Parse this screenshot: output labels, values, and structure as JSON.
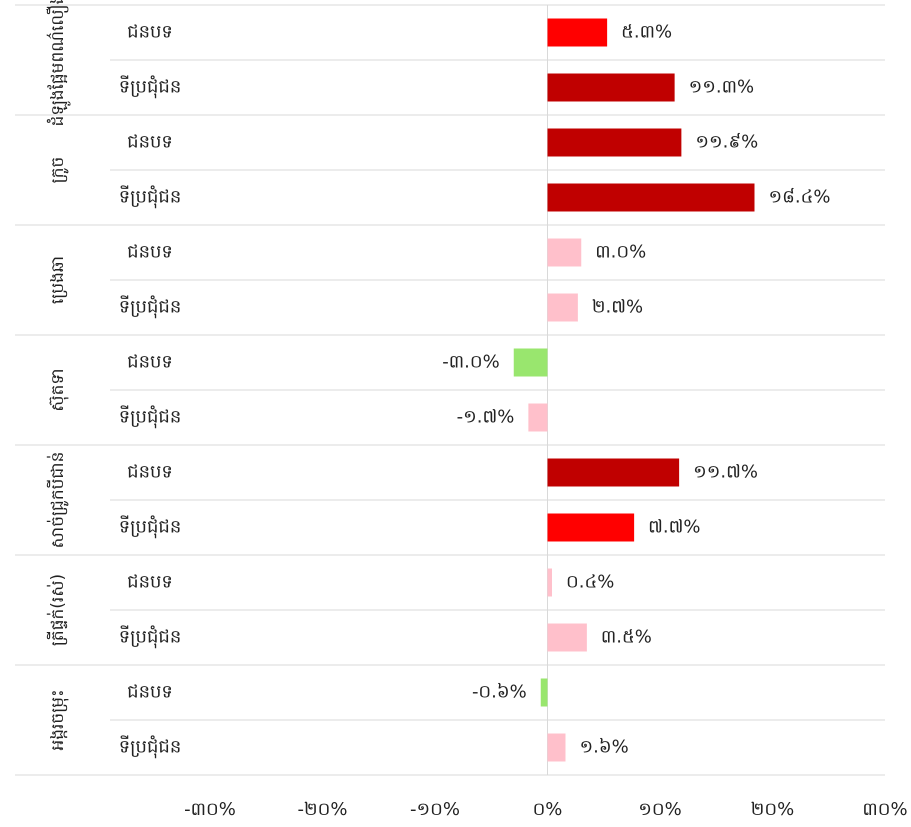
{
  "chart_data": {
    "type": "bar",
    "orientation": "horizontal",
    "groups": [
      "ដំឡូងផ្អែមពណ៌លឿង",
      "ក្រូច",
      "ប្រេងឆា",
      "ស៊ុតទា",
      "សាច់ជ្រូកបីជាន់",
      "ត្រីផ្ទក់(រស់)",
      "អង្ករចម្រុះ"
    ],
    "categories": [
      "ជនបទ",
      "ទីប្រជុំជន",
      "ជនបទ",
      "ទីប្រជុំជន",
      "ជនបទ",
      "ទីប្រជុំជន",
      "ជនបទ",
      "ទីប្រជុំជន",
      "ជនបទ",
      "ទីប្រជុំជន",
      "ជនបទ",
      "ទីប្រជុំជន",
      "ជនបទ",
      "ទីប្រជុំជន"
    ],
    "values": [
      5.3,
      11.3,
      11.9,
      18.4,
      3.0,
      2.7,
      -3.0,
      -1.7,
      11.7,
      7.7,
      0.4,
      3.5,
      -0.6,
      1.6
    ],
    "value_labels": [
      "៥.៣%",
      "១១.៣%",
      "១១.៩%",
      "១៨.៤%",
      "៣.០%",
      "២.៧%",
      "-៣.០%",
      "-១.៧%",
      "១១.៧%",
      "៧.៧%",
      "០.៤%",
      "៣.៥%",
      "-០.៦%",
      "១.៦%"
    ],
    "colors": [
      "#ff0000",
      "#c00000",
      "#c00000",
      "#c00000",
      "#ffc0cb",
      "#ffc0cb",
      "#99e66e",
      "#ffc0cb",
      "#c00000",
      "#ff0000",
      "#ffc0cb",
      "#ffc0cb",
      "#99e66e",
      "#ffc0cb"
    ],
    "xlim": [
      -30,
      30
    ],
    "xticks": [
      {
        "value": -30,
        "label": "-៣០%"
      },
      {
        "value": -20,
        "label": "-២០%"
      },
      {
        "value": -10,
        "label": "-១០%"
      },
      {
        "value": 0,
        "label": "០%"
      },
      {
        "value": 10,
        "label": "១០%"
      },
      {
        "value": 20,
        "label": "២០%"
      },
      {
        "value": 30,
        "label": "៣០%"
      }
    ]
  }
}
